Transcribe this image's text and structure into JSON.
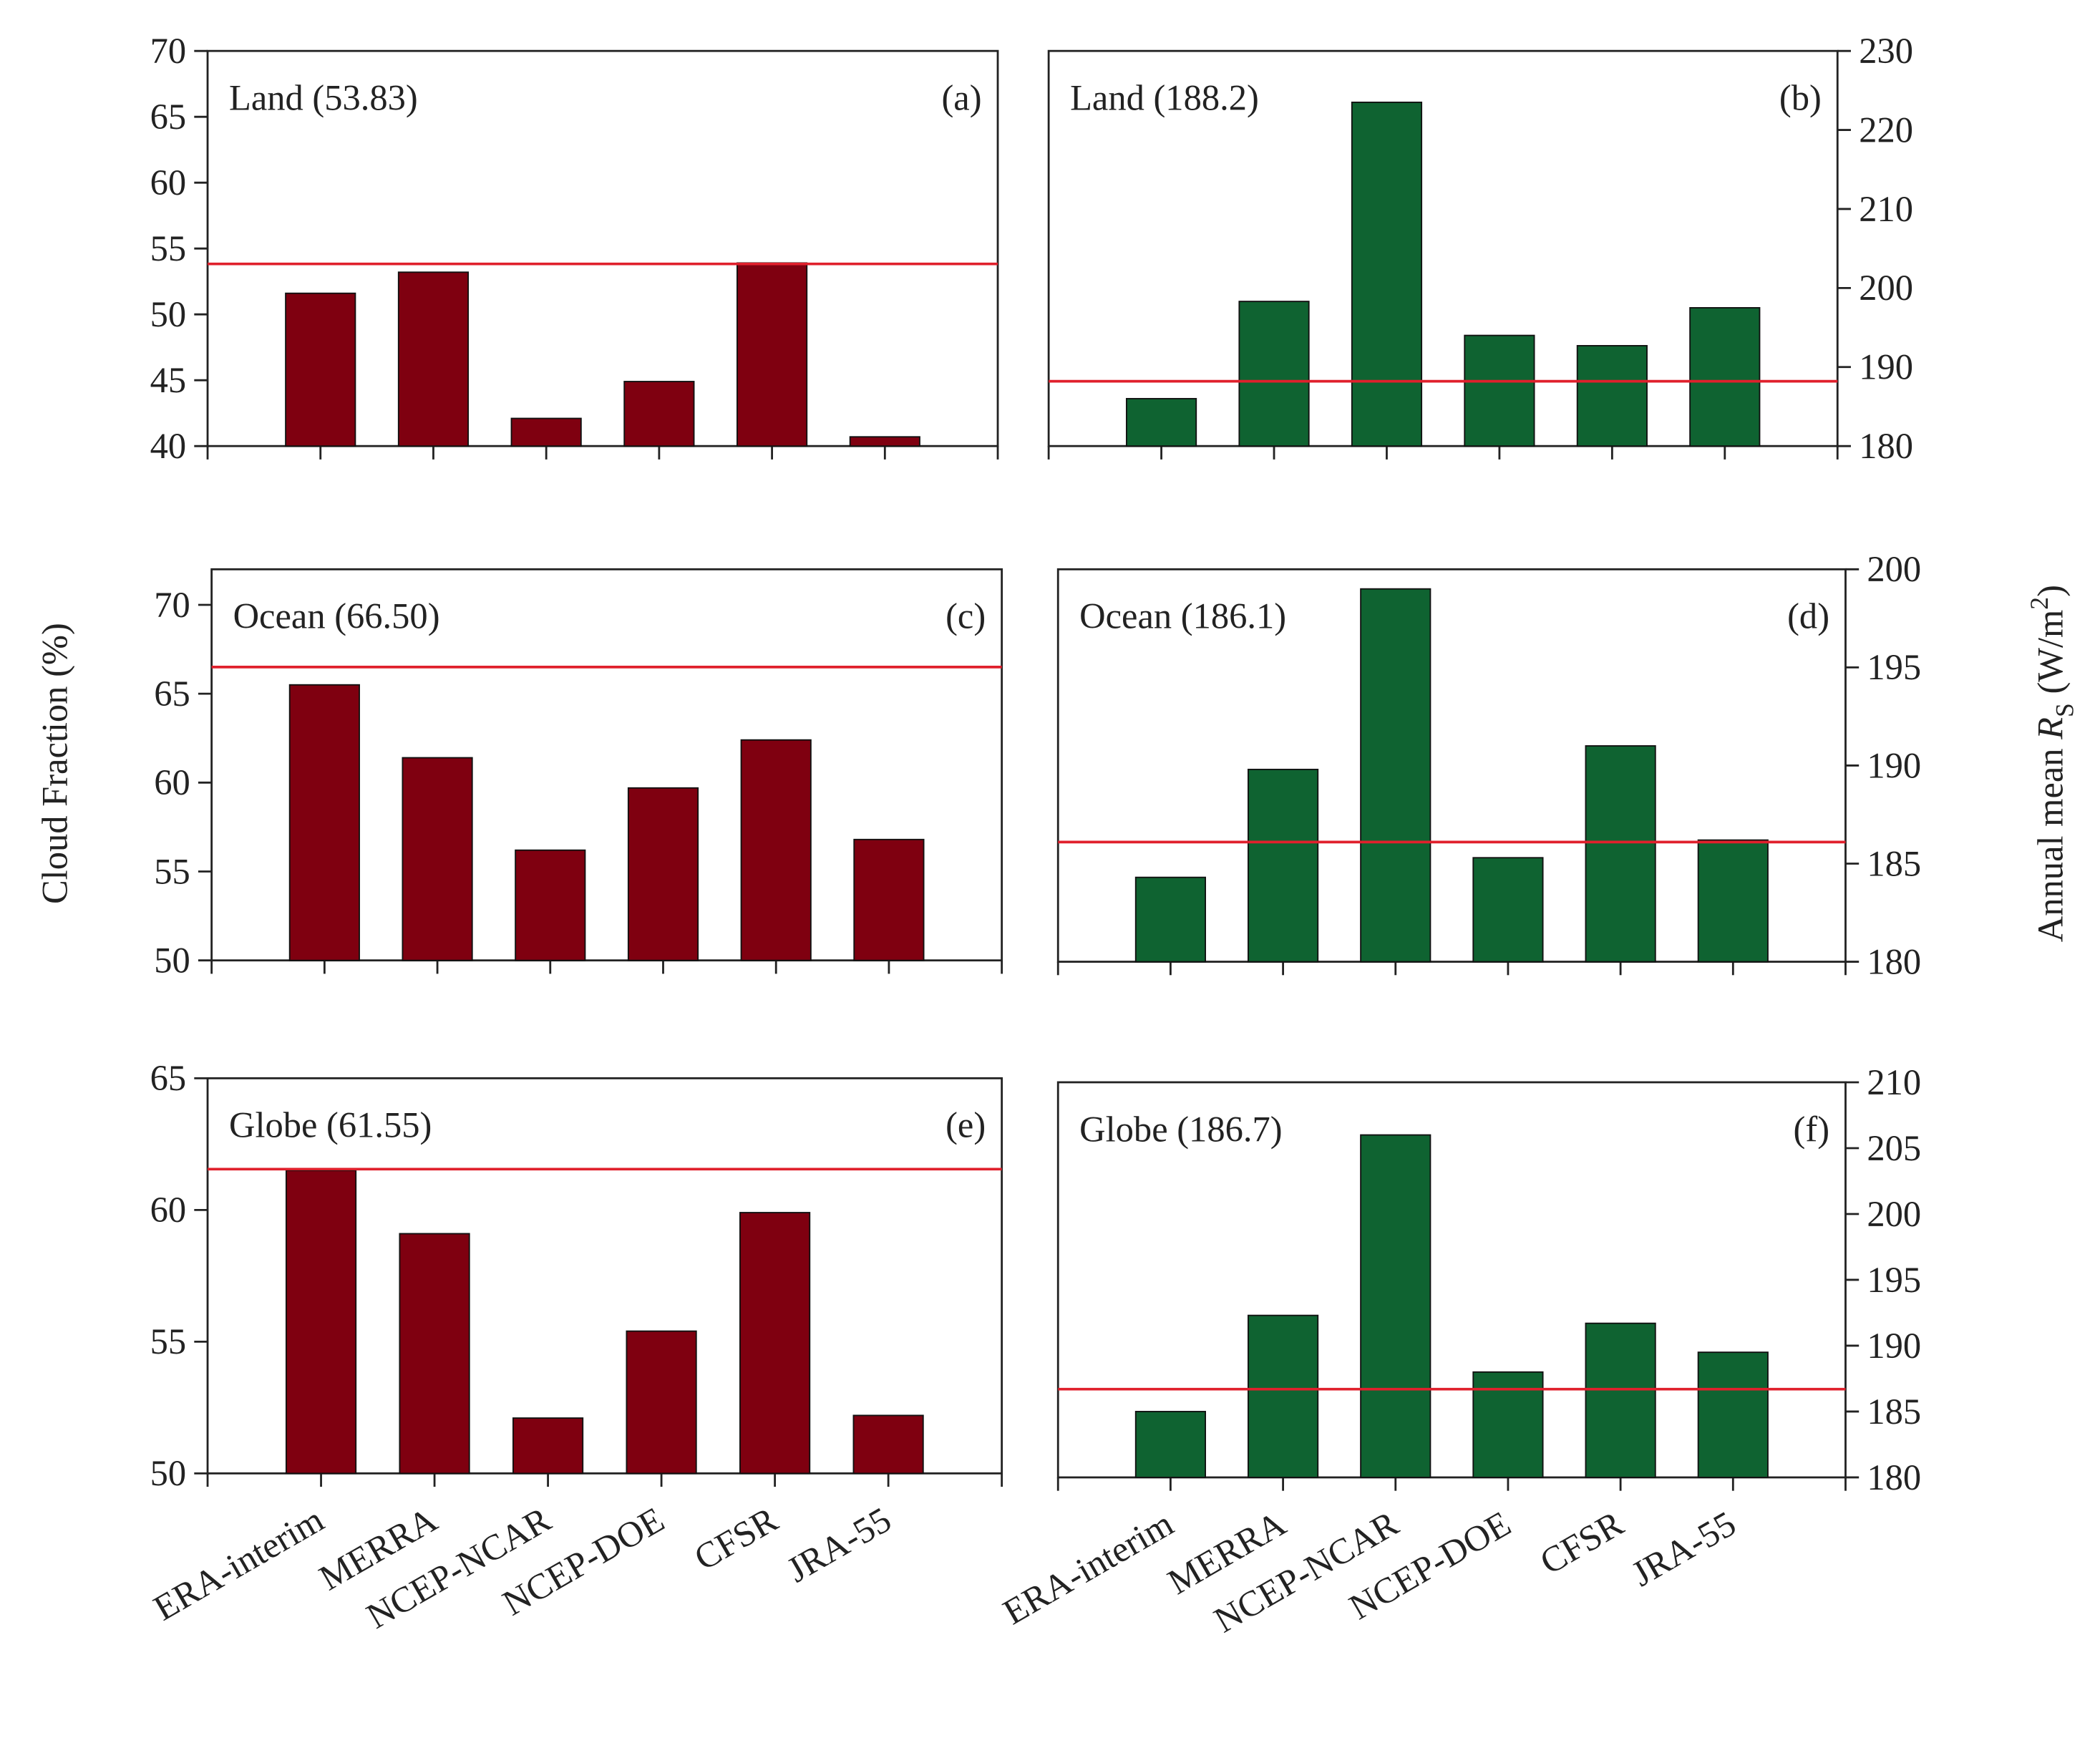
{
  "chart_data": [
    {
      "type": "bar",
      "annotation": "Land (53.83)",
      "panel": "(a)",
      "values": [
        51.6,
        53.2,
        42.1,
        44.9,
        53.9,
        40.7
      ],
      "reference": 53.83,
      "color": "#7f0010",
      "reference_color": "#e0202c",
      "ylim": [
        40,
        70
      ],
      "yticks": [
        40,
        45,
        50,
        55,
        60,
        65,
        70
      ],
      "axis_side": "left"
    },
    {
      "type": "bar",
      "annotation": "Land (188.2)",
      "panel": "(b)",
      "values": [
        186,
        198.3,
        223.5,
        194,
        192.7,
        197.5
      ],
      "reference": 188.2,
      "color": "#0f6331",
      "reference_color": "#e0202c",
      "ylim": [
        180,
        230
      ],
      "yticks": [
        180,
        190,
        200,
        210,
        220,
        230
      ],
      "axis_side": "right"
    },
    {
      "type": "bar",
      "annotation": "Ocean (66.50)",
      "panel": "(c)",
      "values": [
        65.5,
        61.4,
        56.2,
        59.7,
        62.4,
        56.8
      ],
      "reference": 66.5,
      "color": "#7f0010",
      "reference_color": "#e0202c",
      "ylim": [
        50,
        72
      ],
      "yticks": [
        50,
        55,
        60,
        65,
        70
      ],
      "axis_side": "left",
      "ylabel": "Cloud Fraction (%)"
    },
    {
      "type": "bar",
      "annotation": "Ocean (186.1)",
      "panel": "(d)",
      "values": [
        184.3,
        189.8,
        199,
        185.3,
        191,
        186.2
      ],
      "reference": 186.1,
      "color": "#0f6331",
      "reference_color": "#e0202c",
      "ylim": [
        180,
        200
      ],
      "yticks": [
        180,
        185,
        190,
        195,
        200
      ],
      "axis_side": "right",
      "ylabel": {
        "start": "Annual mean ",
        "symbol": "R",
        "sub": "S",
        "mid": " (W/m",
        "sup": "2",
        "end": ")"
      }
    },
    {
      "type": "bar",
      "annotation": "Globe (61.55)",
      "panel": "(e)",
      "categories": [
        "ERA-interim",
        "MERRA",
        "NCEP-NCAR",
        "NCEP-DOE",
        "CFSR",
        "JRA-55"
      ],
      "values": [
        61.5,
        59.1,
        52.1,
        55.4,
        59.9,
        52.2
      ],
      "reference": 61.55,
      "color": "#7f0010",
      "reference_color": "#e0202c",
      "ylim": [
        50,
        65
      ],
      "yticks": [
        50,
        55,
        60,
        65
      ],
      "axis_side": "left"
    },
    {
      "type": "bar",
      "annotation": "Globe (186.7)",
      "panel": "(f)",
      "categories": [
        "ERA-interim",
        "MERRA",
        "NCEP-NCAR",
        "NCEP-DOE",
        "CFSR",
        "JRA-55"
      ],
      "values": [
        185,
        192.3,
        206,
        188,
        191.7,
        189.5
      ],
      "reference": 186.7,
      "color": "#0f6331",
      "reference_color": "#e0202c",
      "ylim": [
        180,
        210
      ],
      "yticks": [
        180,
        185,
        190,
        195,
        200,
        205,
        210
      ],
      "axis_side": "right"
    }
  ]
}
